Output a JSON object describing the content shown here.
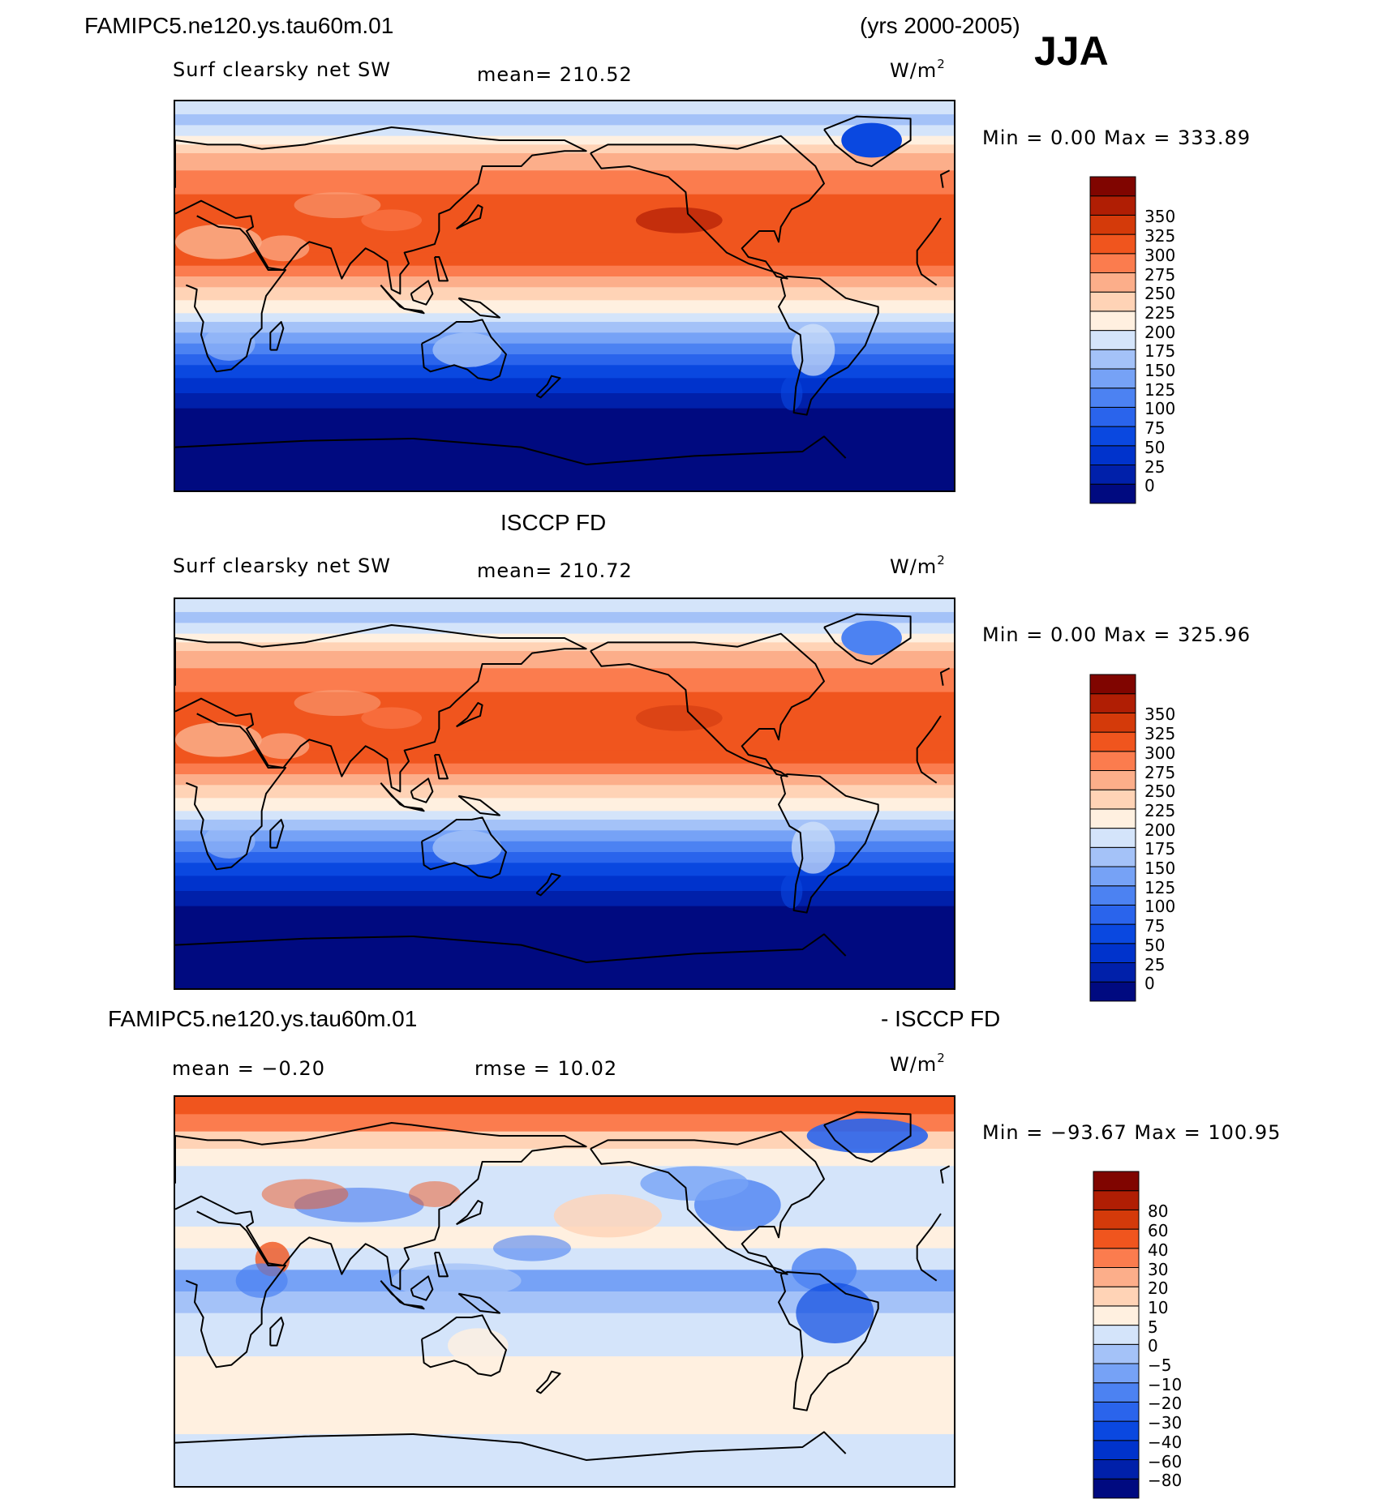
{
  "header": {
    "case_name": "FAMIPC5.ne120.ys.tau60m.01",
    "years": "(yrs 2000-2005)",
    "season": "JJA"
  },
  "panels": [
    {
      "id": "model",
      "variable": "Surf clearsky net SW",
      "mean_label": "mean= 210.52",
      "units_base": "W/m",
      "units_exp": "2",
      "minmax": "Min =    0.00 Max = 333.89"
    },
    {
      "id": "obs",
      "title": "ISCCP FD",
      "variable": "Surf clearsky net SW",
      "mean_label": "mean= 210.72",
      "units_base": "W/m",
      "units_exp": "2",
      "minmax": "Min =    0.00 Max = 325.96"
    },
    {
      "id": "diff",
      "title_left": "FAMIPC5.ne120.ys.tau60m.01",
      "title_right": "- ISCCP FD",
      "mean_label": "mean =   −0.20",
      "rmse_label": "rmse =   10.02",
      "units_base": "W/m",
      "units_exp": "2",
      "minmax": "Min = −93.67 Max = 100.95"
    }
  ],
  "chart_data": [
    {
      "type": "heatmap",
      "title": "Surf clearsky net SW (FAMIPC5.ne120.ys.tau60m.01, JJA)",
      "units": "W/m2",
      "mean": 210.52,
      "min": 0.0,
      "max": 333.89,
      "levels": [
        "0",
        "25",
        "50",
        "75",
        "100",
        "125",
        "150",
        "175",
        "200",
        "225",
        "250",
        "275",
        "300",
        "325",
        "350"
      ],
      "colors": [
        "#000a80",
        "#0020aa",
        "#0033cc",
        "#0a48e0",
        "#2a64ec",
        "#4c82f2",
        "#76a2f6",
        "#a4c2f8",
        "#d4e4fa",
        "#fff0e0",
        "#ffd3b6",
        "#fcae8a",
        "#fb7c4e",
        "#f0551e",
        "#d43a0a",
        "#b01e04",
        "#800500"
      ]
    },
    {
      "type": "heatmap",
      "title": "Surf clearsky net SW (ISCCP FD, JJA)",
      "units": "W/m2",
      "mean": 210.72,
      "min": 0.0,
      "max": 325.96,
      "levels": [
        "0",
        "25",
        "50",
        "75",
        "100",
        "125",
        "150",
        "175",
        "200",
        "225",
        "250",
        "275",
        "300",
        "325",
        "350"
      ],
      "colors": [
        "#000a80",
        "#0020aa",
        "#0033cc",
        "#0a48e0",
        "#2a64ec",
        "#4c82f2",
        "#76a2f6",
        "#a4c2f8",
        "#d4e4fa",
        "#fff0e0",
        "#ffd3b6",
        "#fcae8a",
        "#fb7c4e",
        "#f0551e",
        "#d43a0a",
        "#b01e04",
        "#800500"
      ]
    },
    {
      "type": "heatmap",
      "title": "FAMIPC5.ne120.ys.tau60m.01 - ISCCP FD",
      "units": "W/m2",
      "mean": -0.2,
      "rmse": 10.02,
      "min": -93.67,
      "max": 100.95,
      "levels": [
        "−80",
        "−60",
        "−40",
        "−30",
        "−20",
        "−10",
        "−5",
        "0",
        "5",
        "10",
        "20",
        "30",
        "40",
        "60",
        "80"
      ],
      "colors": [
        "#000a80",
        "#0020aa",
        "#0033cc",
        "#0a48e0",
        "#2a64ec",
        "#4c82f2",
        "#76a2f6",
        "#a4c2f8",
        "#d4e4fa",
        "#fff0e0",
        "#ffd3b6",
        "#fcae8a",
        "#fb7c4e",
        "#f0551e",
        "#d43a0a",
        "#b01e04",
        "#800500"
      ]
    }
  ]
}
